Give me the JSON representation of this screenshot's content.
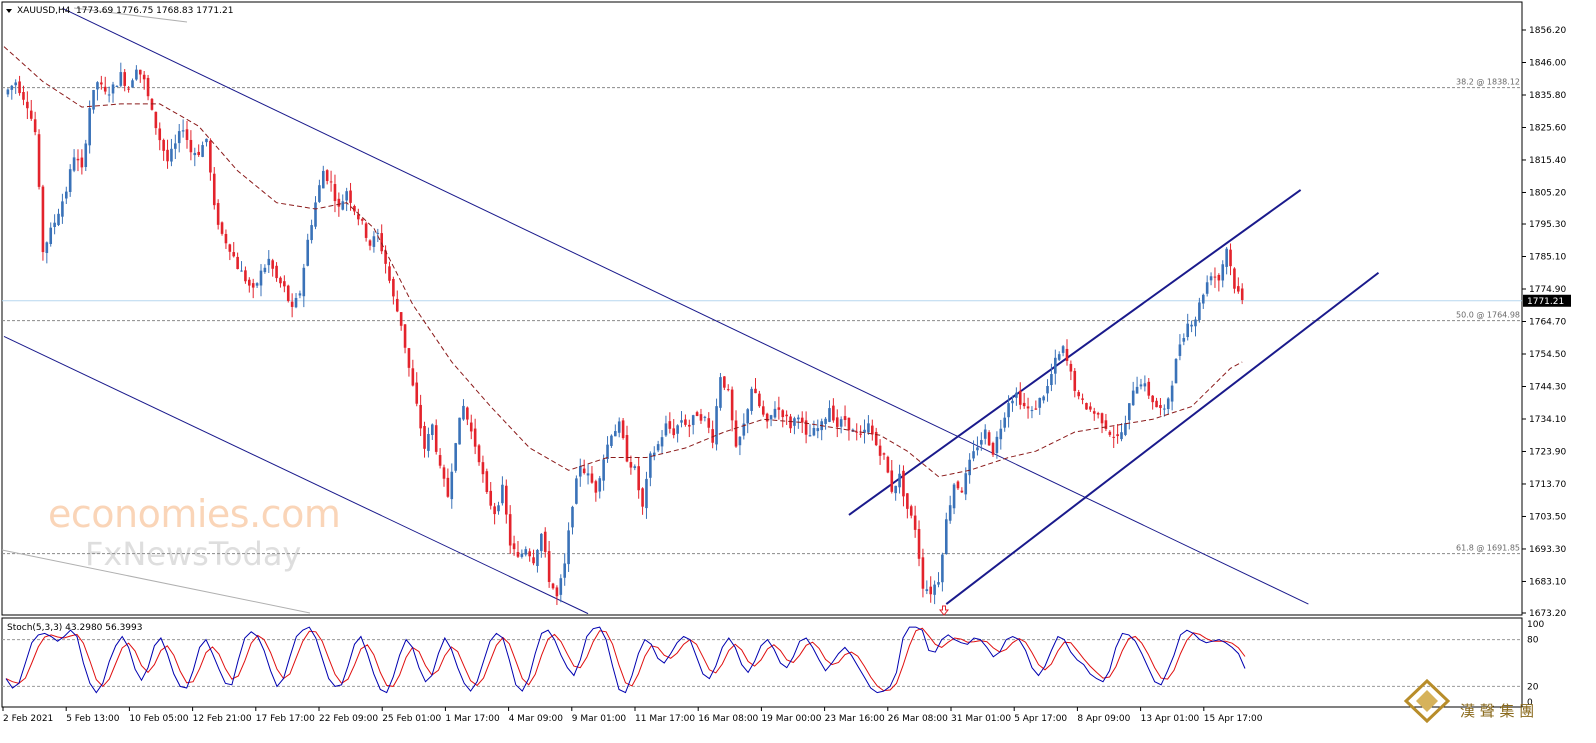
{
  "header": {
    "symbol": "XAUUSD,H4",
    "ohlc": "1773.69 1776.75 1768.83 1771.21"
  },
  "chart_data": {
    "type": "candlestick",
    "symbol": "XAUUSD",
    "timeframe": "H4",
    "price_axis": {
      "ticks": [
        "1856.20",
        "1846.00",
        "1835.80",
        "1825.60",
        "1815.40",
        "1805.20",
        "1795.30",
        "1785.10",
        "1774.90",
        "1764.70",
        "1754.50",
        "1744.30",
        "1734.10",
        "1723.90",
        "1713.70",
        "1703.50",
        "1693.30",
        "1683.10",
        "1673.20"
      ],
      "range": [
        1671,
        1861
      ]
    },
    "time_axis": {
      "ticks": [
        "2 Feb 2021",
        "5 Feb 13:00",
        "10 Feb 05:00",
        "12 Feb 21:00",
        "17 Feb 17:00",
        "22 Feb 09:00",
        "25 Feb 01:00",
        "1 Mar 17:00",
        "4 Mar 09:00",
        "9 Mar 01:00",
        "11 Mar 17:00",
        "16 Mar 08:00",
        "19 Mar 00:00",
        "23 Mar 16:00",
        "26 Mar 08:00",
        "31 Mar 01:00",
        "5 Apr 17:00",
        "8 Apr 09:00",
        "13 Apr 01:00",
        "15 Apr 17:00"
      ]
    },
    "current_price": "1771.21",
    "fib_levels": [
      {
        "label": "38.2 @ 1838.12",
        "value": 1838.12
      },
      {
        "label": "50.0 @ 1764.98",
        "value": 1764.98
      },
      {
        "label": "61.8 @ 1691.85",
        "value": 1691.85
      }
    ],
    "price_path": [
      [
        0,
        1836
      ],
      [
        3,
        1840
      ],
      [
        6,
        1833
      ],
      [
        8,
        1824
      ],
      [
        10,
        1787
      ],
      [
        13,
        1796
      ],
      [
        16,
        1806
      ],
      [
        18,
        1817
      ],
      [
        20,
        1812
      ],
      [
        22,
        1832
      ],
      [
        24,
        1840
      ],
      [
        26,
        1836
      ],
      [
        28,
        1838
      ],
      [
        30,
        1842
      ],
      [
        32,
        1838
      ],
      [
        34,
        1845
      ],
      [
        36,
        1840
      ],
      [
        38,
        1830
      ],
      [
        40,
        1822
      ],
      [
        42,
        1815
      ],
      [
        44,
        1820
      ],
      [
        46,
        1826
      ],
      [
        48,
        1818
      ],
      [
        50,
        1818
      ],
      [
        52,
        1822
      ],
      [
        54,
        1800
      ],
      [
        56,
        1792
      ],
      [
        58,
        1788
      ],
      [
        60,
        1782
      ],
      [
        62,
        1778
      ],
      [
        64,
        1774
      ],
      [
        66,
        1780
      ],
      [
        68,
        1784
      ],
      [
        70,
        1778
      ],
      [
        72,
        1775
      ],
      [
        74,
        1768
      ],
      [
        76,
        1774
      ],
      [
        78,
        1790
      ],
      [
        80,
        1802
      ],
      [
        82,
        1812
      ],
      [
        84,
        1808
      ],
      [
        86,
        1800
      ],
      [
        88,
        1806
      ],
      [
        90,
        1800
      ],
      [
        92,
        1795
      ],
      [
        94,
        1789
      ],
      [
        96,
        1792
      ],
      [
        98,
        1783
      ],
      [
        100,
        1772
      ],
      [
        102,
        1764
      ],
      [
        104,
        1750
      ],
      [
        106,
        1738
      ],
      [
        108,
        1725
      ],
      [
        110,
        1732
      ],
      [
        112,
        1718
      ],
      [
        114,
        1710
      ],
      [
        116,
        1728
      ],
      [
        118,
        1738
      ],
      [
        120,
        1730
      ],
      [
        122,
        1722
      ],
      [
        124,
        1710
      ],
      [
        126,
        1705
      ],
      [
        128,
        1712
      ],
      [
        130,
        1695
      ],
      [
        132,
        1690
      ],
      [
        134,
        1694
      ],
      [
        136,
        1690
      ],
      [
        138,
        1698
      ],
      [
        140,
        1684
      ],
      [
        142,
        1678
      ],
      [
        144,
        1688
      ],
      [
        146,
        1708
      ],
      [
        148,
        1720
      ],
      [
        150,
        1716
      ],
      [
        152,
        1712
      ],
      [
        154,
        1722
      ],
      [
        156,
        1730
      ],
      [
        158,
        1732
      ],
      [
        160,
        1722
      ],
      [
        162,
        1718
      ],
      [
        164,
        1706
      ],
      [
        166,
        1722
      ],
      [
        168,
        1726
      ],
      [
        170,
        1732
      ],
      [
        172,
        1730
      ],
      [
        174,
        1734
      ],
      [
        176,
        1732
      ],
      [
        178,
        1736
      ],
      [
        180,
        1734
      ],
      [
        182,
        1728
      ],
      [
        184,
        1748
      ],
      [
        186,
        1742
      ],
      [
        188,
        1724
      ],
      [
        190,
        1732
      ],
      [
        192,
        1744
      ],
      [
        194,
        1738
      ],
      [
        196,
        1732
      ],
      [
        198,
        1738
      ],
      [
        200,
        1736
      ],
      [
        202,
        1732
      ],
      [
        204,
        1736
      ],
      [
        206,
        1728
      ],
      [
        208,
        1730
      ],
      [
        210,
        1732
      ],
      [
        212,
        1738
      ],
      [
        214,
        1732
      ],
      [
        216,
        1734
      ],
      [
        218,
        1730
      ],
      [
        220,
        1728
      ],
      [
        222,
        1732
      ],
      [
        224,
        1726
      ],
      [
        226,
        1722
      ],
      [
        228,
        1712
      ],
      [
        230,
        1716
      ],
      [
        232,
        1706
      ],
      [
        234,
        1700
      ],
      [
        236,
        1682
      ],
      [
        238,
        1680
      ],
      [
        240,
        1684
      ],
      [
        242,
        1702
      ],
      [
        244,
        1714
      ],
      [
        246,
        1712
      ],
      [
        248,
        1720
      ],
      [
        250,
        1726
      ],
      [
        252,
        1730
      ],
      [
        254,
        1724
      ],
      [
        256,
        1732
      ],
      [
        258,
        1740
      ],
      [
        260,
        1742
      ],
      [
        262,
        1738
      ],
      [
        264,
        1736
      ],
      [
        266,
        1740
      ],
      [
        268,
        1744
      ],
      [
        270,
        1752
      ],
      [
        272,
        1756
      ],
      [
        274,
        1748
      ],
      [
        276,
        1740
      ],
      [
        278,
        1738
      ],
      [
        280,
        1736
      ],
      [
        282,
        1734
      ],
      [
        284,
        1730
      ],
      [
        286,
        1728
      ],
      [
        288,
        1732
      ],
      [
        290,
        1744
      ],
      [
        292,
        1746
      ],
      [
        294,
        1742
      ],
      [
        296,
        1738
      ],
      [
        298,
        1736
      ],
      [
        300,
        1746
      ],
      [
        302,
        1758
      ],
      [
        304,
        1764
      ],
      [
        306,
        1766
      ],
      [
        308,
        1774
      ],
      [
        310,
        1780
      ],
      [
        312,
        1778
      ],
      [
        314,
        1788
      ],
      [
        316,
        1776
      ],
      [
        318,
        1771
      ]
    ],
    "moving_average": [
      [
        0,
        1851
      ],
      [
        10,
        1840
      ],
      [
        20,
        1832
      ],
      [
        30,
        1833
      ],
      [
        40,
        1833
      ],
      [
        50,
        1826
      ],
      [
        60,
        1812
      ],
      [
        70,
        1802
      ],
      [
        80,
        1800
      ],
      [
        88,
        1802
      ],
      [
        95,
        1794
      ],
      [
        105,
        1770
      ],
      [
        115,
        1752
      ],
      [
        125,
        1738
      ],
      [
        135,
        1725
      ],
      [
        145,
        1718
      ],
      [
        155,
        1722
      ],
      [
        165,
        1722
      ],
      [
        175,
        1725
      ],
      [
        185,
        1730
      ],
      [
        195,
        1734
      ],
      [
        205,
        1733
      ],
      [
        215,
        1731
      ],
      [
        225,
        1729
      ],
      [
        232,
        1724
      ],
      [
        240,
        1716
      ],
      [
        248,
        1718
      ],
      [
        258,
        1722
      ],
      [
        265,
        1724
      ],
      [
        275,
        1730
      ],
      [
        285,
        1732
      ],
      [
        295,
        1734
      ],
      [
        305,
        1738
      ],
      [
        315,
        1750
      ],
      [
        318,
        1752
      ]
    ],
    "trendlines": [
      {
        "name": "falling upper",
        "from": [
          15,
          1863
        ],
        "to": [
          335,
          1676
        ]
      },
      {
        "name": "falling lower",
        "from": [
          0,
          1760
        ],
        "to": [
          150,
          1673
        ]
      },
      {
        "name": "rising channel upper",
        "from": [
          217,
          1704
        ],
        "to": [
          333,
          1806
        ]
      },
      {
        "name": "rising channel lower",
        "from": [
          242,
          1676
        ],
        "to": [
          353,
          1780
        ]
      }
    ],
    "stochastic": {
      "label": "Stoch(5,3,3) 43.2980 56.3993",
      "main_last": 43.298,
      "signal_last": 56.3993,
      "levels": [
        80,
        20
      ],
      "axis_labels": [
        "100",
        "80",
        "20",
        "0"
      ],
      "main": [
        30,
        18,
        24,
        50,
        76,
        86,
        88,
        84,
        78,
        84,
        92,
        84,
        50,
        24,
        12,
        24,
        52,
        72,
        84,
        70,
        42,
        28,
        44,
        72,
        82,
        62,
        36,
        20,
        18,
        40,
        70,
        80,
        62,
        42,
        24,
        22,
        54,
        82,
        90,
        84,
        66,
        40,
        20,
        30,
        58,
        84,
        92,
        96,
        82,
        56,
        30,
        20,
        22,
        46,
        74,
        84,
        62,
        36,
        16,
        12,
        32,
        60,
        80,
        70,
        44,
        26,
        34,
        62,
        82,
        68,
        44,
        24,
        14,
        26,
        52,
        78,
        88,
        82,
        54,
        22,
        14,
        30,
        62,
        88,
        92,
        80,
        60,
        44,
        34,
        54,
        84,
        94,
        96,
        80,
        46,
        16,
        12,
        34,
        62,
        80,
        74,
        56,
        50,
        62,
        76,
        84,
        80,
        58,
        36,
        30,
        46,
        70,
        82,
        70,
        48,
        38,
        52,
        72,
        80,
        68,
        50,
        44,
        58,
        78,
        82,
        70,
        54,
        40,
        50,
        62,
        70,
        60,
        46,
        32,
        18,
        12,
        14,
        20,
        38,
        82,
        96,
        96,
        92,
        66,
        64,
        80,
        86,
        80,
        76,
        74,
        82,
        80,
        70,
        58,
        64,
        80,
        84,
        80,
        66,
        44,
        34,
        46,
        66,
        84,
        80,
        64,
        54,
        48,
        36,
        30,
        26,
        40,
        70,
        88,
        86,
        78,
        62,
        44,
        26,
        22,
        40,
        60,
        86,
        92,
        88,
        80,
        76,
        78,
        80,
        76,
        70,
        62,
        43
      ]
    }
  },
  "watermark": {
    "line1": "economies.com",
    "line2": "FxNewsToday"
  },
  "logo": {
    "text": "漢 聲 集 團"
  },
  "colors": {
    "bull": "#3a72b8",
    "bear": "#e3232c",
    "ma": "#8b1a1a",
    "trend": "#1a1a8c",
    "stoch_main": "#0000b0",
    "stoch_signal": "#e01010",
    "price_line": "#b7d7ef"
  }
}
